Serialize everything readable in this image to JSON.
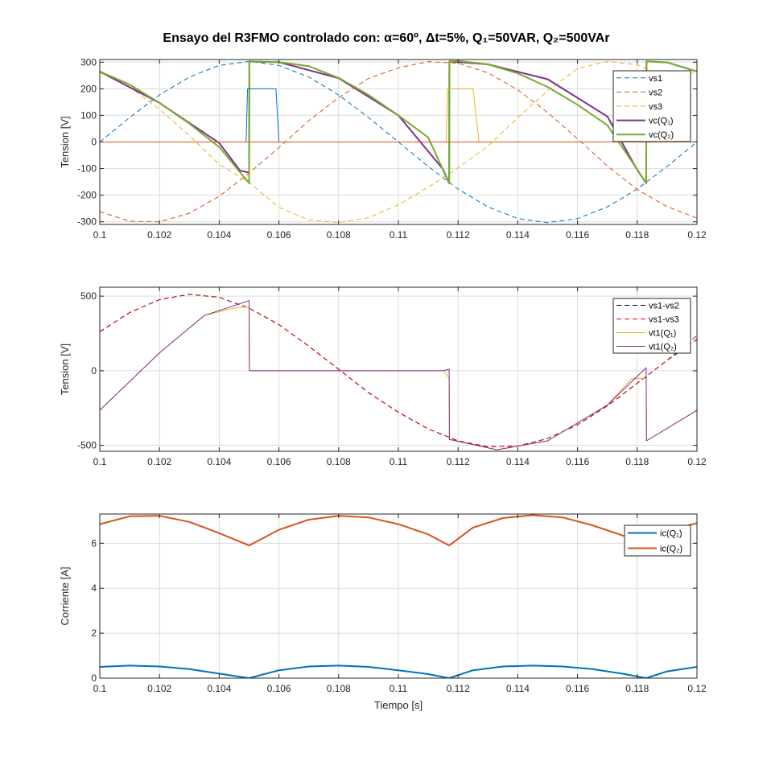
{
  "figure": {
    "title": "Ensayo del R3FMO controlado con: α=60º, Δt=5%, Q₁=50VAR, Q₂=500VAr"
  },
  "chart_data": [
    {
      "type": "line",
      "ylabel": "Tension [V]",
      "xlabel": "",
      "xlim": [
        0.1,
        0.12
      ],
      "ylim": [
        -310,
        310
      ],
      "xticks": [
        0.1,
        0.102,
        0.104,
        0.106,
        0.108,
        0.11,
        0.112,
        0.114,
        0.116,
        0.118,
        0.12
      ],
      "xtick_labels": [
        "0.1",
        "0.102",
        "0.104",
        "0.106",
        "0.108",
        "0.11",
        "0.112",
        "0.114",
        "0.116",
        "0.118",
        "0.12"
      ],
      "yticks": [
        -300,
        -200,
        -100,
        0,
        100,
        200,
        300
      ],
      "ytick_labels": [
        "-300",
        "-200",
        "-100",
        "0",
        "100",
        "200",
        "300"
      ],
      "grid": true,
      "legend_position": "top-right",
      "series": [
        {
          "name": "vs1",
          "color": "#0072BD",
          "style": "dashed",
          "width": 1,
          "x": [
            0.1,
            0.101,
            0.102,
            0.103,
            0.104,
            0.105,
            0.106,
            0.107,
            0.108,
            0.109,
            0.11,
            0.111,
            0.112,
            0.113,
            0.114,
            0.115,
            0.116,
            0.117,
            0.118,
            0.119,
            0.12
          ],
          "y": [
            0,
            92,
            177,
            244,
            288,
            303,
            288,
            244,
            177,
            92,
            0,
            -92,
            -177,
            -244,
            -288,
            -303,
            -288,
            -244,
            -177,
            -92,
            0
          ]
        },
        {
          "name": "vs2",
          "color": "#D95319",
          "style": "dashed",
          "width": 1,
          "x": [
            0.1,
            0.101,
            0.102,
            0.103,
            0.104,
            0.105,
            0.106,
            0.107,
            0.108,
            0.109,
            0.11,
            0.111,
            0.112,
            0.113,
            0.114,
            0.115,
            0.116,
            0.117,
            0.118,
            0.119,
            0.12
          ],
          "y": [
            -262,
            -298,
            -300,
            -268,
            -204,
            -117,
            -21,
            80,
            167,
            239,
            279,
            302,
            296,
            260,
            196,
            111,
            12,
            -90,
            -179,
            -243,
            -286
          ]
        },
        {
          "name": "vs3",
          "color": "#EDB120",
          "style": "dashed",
          "width": 1,
          "x": [
            0.1,
            0.101,
            0.102,
            0.103,
            0.104,
            0.105,
            0.106,
            0.107,
            0.108,
            0.109,
            0.11,
            0.111,
            0.112,
            0.113,
            0.114,
            0.115,
            0.116,
            0.117,
            0.118,
            0.119,
            0.12
          ],
          "y": [
            262,
            206,
            123,
            24,
            -84,
            -152,
            -246,
            -293,
            -303,
            -285,
            -236,
            -170,
            -97,
            -16,
            92,
            192,
            276,
            303,
            290,
            240,
            262
          ]
        },
        {
          "name": "vc(Q₁)",
          "color": "#7E2F8E",
          "style": "solid",
          "width": 2,
          "x": [
            0.1,
            0.102,
            0.104,
            0.1047,
            0.105,
            0.10501,
            0.1055,
            0.106,
            0.108,
            0.11,
            0.1115,
            0.1117,
            0.11171,
            0.113,
            0.115,
            0.117,
            0.118,
            0.1183,
            0.11831,
            0.119,
            0.12
          ],
          "y": [
            265,
            147,
            -4,
            -108,
            -115,
            303,
            301,
            300,
            240,
            100,
            -103,
            -155,
            303,
            292,
            236,
            96,
            -105,
            -155,
            303,
            299,
            265
          ]
        },
        {
          "name": "vc(Q₂)",
          "color": "#77AC30",
          "style": "solid",
          "width": 2,
          "x": [
            0.1,
            0.101,
            0.102,
            0.103,
            0.104,
            0.105,
            0.10501,
            0.106,
            0.107,
            0.108,
            0.109,
            0.11,
            0.111,
            0.1117,
            0.11171,
            0.112,
            0.113,
            0.114,
            0.115,
            0.116,
            0.117,
            0.118,
            0.1183,
            0.11831,
            0.119,
            0.12
          ],
          "y": [
            265,
            216,
            147,
            69,
            -19,
            -155,
            303,
            300,
            285,
            241,
            177,
            100,
            17,
            -155,
            303,
            305,
            292,
            258,
            207,
            140,
            63,
            -103,
            -155,
            303,
            299,
            265
          ]
        },
        {
          "name": "",
          "color": "#0072BD",
          "style": "solid",
          "width": 1,
          "x": [
            0.1,
            0.1049,
            0.10495,
            0.1059,
            0.106,
            0.12
          ],
          "y": [
            0,
            0,
            200,
            200,
            0,
            0
          ]
        },
        {
          "name": "",
          "color": "#EDB120",
          "style": "solid",
          "width": 1,
          "x": [
            0.1116,
            0.11165,
            0.1125,
            0.1127
          ],
          "y": [
            0,
            200,
            200,
            0
          ]
        },
        {
          "name": "",
          "color": "#D95319",
          "style": "solid",
          "width": 1,
          "x": [
            0.1,
            0.12
          ],
          "y": [
            0,
            0
          ]
        }
      ]
    },
    {
      "type": "line",
      "ylabel": "Tension [V]",
      "xlabel": "",
      "xlim": [
        0.1,
        0.12
      ],
      "ylim": [
        -540,
        560
      ],
      "xticks": [
        0.1,
        0.102,
        0.104,
        0.106,
        0.108,
        0.11,
        0.112,
        0.114,
        0.116,
        0.118,
        0.12
      ],
      "xtick_labels": [
        "0.1",
        "0.102",
        "0.104",
        "0.106",
        "0.108",
        "0.11",
        "0.112",
        "0.114",
        "0.116",
        "0.118",
        "0.12"
      ],
      "yticks": [
        -500,
        0,
        500
      ],
      "ytick_labels": [
        "-500",
        "0",
        "500"
      ],
      "grid": true,
      "legend_position": "top-right",
      "series": [
        {
          "name": "vs1-vs2",
          "color": "#000000",
          "style": "dashed",
          "width": 1,
          "x": [
            0.1,
            0.101,
            0.102,
            0.103,
            0.104,
            0.105,
            0.106,
            0.107,
            0.108,
            0.109,
            0.11,
            0.111,
            0.112,
            0.113,
            0.114,
            0.115,
            0.116,
            0.117,
            0.118,
            0.119,
            0.12
          ],
          "y": [
            262,
            390,
            477,
            512,
            492,
            420,
            309,
            164,
            10,
            -147,
            -279,
            -390,
            -470,
            -510,
            -505,
            -454,
            -362,
            -236,
            -84,
            70,
            210
          ]
        },
        {
          "name": "vs1-vs3",
          "color": "#E00000",
          "style": "dashed",
          "width": 1,
          "x": [
            0.1,
            0.101,
            0.102,
            0.103,
            0.104,
            0.105,
            0.106,
            0.107,
            0.108,
            0.109,
            0.11,
            0.111,
            0.112,
            0.113,
            0.114,
            0.115,
            0.116,
            0.117,
            0.118,
            0.119,
            0.12
          ],
          "y": [
            262,
            390,
            477,
            512,
            492,
            420,
            309,
            164,
            10,
            -147,
            -279,
            -390,
            -470,
            -510,
            -505,
            -454,
            -362,
            -236,
            -84,
            70,
            235
          ]
        },
        {
          "name": "vt1(Q₁)",
          "color": "#EDB120",
          "style": "solid",
          "width": 1,
          "x": [
            0.1,
            0.102,
            0.1035,
            0.1045,
            0.105,
            0.10501,
            0.1115,
            0.1117,
            0.11171,
            0.1133,
            0.115,
            0.117,
            0.1178,
            0.1183,
            0.11831,
            0.12
          ],
          "y": [
            -265,
            120,
            370,
            420,
            430,
            0,
            0,
            -50,
            -460,
            -530,
            -470,
            -230,
            -55,
            -50,
            -470,
            -265
          ]
        },
        {
          "name": "vt1(Q₂)",
          "color": "#7E2F8E",
          "style": "solid",
          "width": 1,
          "x": [
            0.1,
            0.102,
            0.1035,
            0.105,
            0.10501,
            0.1115,
            0.1117,
            0.11171,
            0.1133,
            0.115,
            0.117,
            0.1183,
            0.11831,
            0.12
          ],
          "y": [
            -265,
            120,
            370,
            470,
            0,
            0,
            10,
            -460,
            -530,
            -470,
            -230,
            20,
            -470,
            -265
          ]
        }
      ]
    },
    {
      "type": "line",
      "ylabel": "Corriente [A]",
      "xlabel": "Tiempo [s]",
      "xlim": [
        0.1,
        0.12
      ],
      "ylim": [
        0,
        7.3
      ],
      "xticks": [
        0.1,
        0.102,
        0.104,
        0.106,
        0.108,
        0.11,
        0.112,
        0.114,
        0.116,
        0.118,
        0.12
      ],
      "xtick_labels": [
        "0.1",
        "0.102",
        "0.104",
        "0.106",
        "0.108",
        "0.11",
        "0.112",
        "0.114",
        "0.116",
        "0.118",
        "0.12"
      ],
      "yticks": [
        0,
        2,
        4,
        6
      ],
      "ytick_labels": [
        "0",
        "2",
        "4",
        "6"
      ],
      "grid": true,
      "legend_position": "top-right",
      "series": [
        {
          "name": "ic(Q₁)",
          "color": "#0072BD",
          "style": "solid",
          "width": 2,
          "x": [
            0.1,
            0.101,
            0.102,
            0.103,
            0.104,
            0.105,
            0.106,
            0.107,
            0.108,
            0.109,
            0.11,
            0.111,
            0.1117,
            0.1125,
            0.1135,
            0.1145,
            0.1155,
            0.1165,
            0.1175,
            0.1183,
            0.119,
            0.12
          ],
          "y": [
            0.5,
            0.56,
            0.52,
            0.4,
            0.2,
            0,
            0.35,
            0.52,
            0.56,
            0.5,
            0.35,
            0.18,
            0,
            0.35,
            0.52,
            0.56,
            0.52,
            0.4,
            0.2,
            0,
            0.3,
            0.5
          ]
        },
        {
          "name": "ic(Q₂)",
          "color": "#D95319",
          "style": "solid",
          "width": 2,
          "x": [
            0.1,
            0.101,
            0.102,
            0.103,
            0.104,
            0.105,
            0.106,
            0.107,
            0.108,
            0.109,
            0.11,
            0.111,
            0.1117,
            0.1125,
            0.1135,
            0.1145,
            0.1155,
            0.1165,
            0.1175,
            0.1183,
            0.119,
            0.12
          ],
          "y": [
            6.85,
            7.2,
            7.22,
            6.95,
            6.45,
            5.9,
            6.6,
            7.05,
            7.22,
            7.15,
            6.85,
            6.4,
            5.9,
            6.7,
            7.12,
            7.25,
            7.15,
            6.8,
            6.35,
            5.9,
            6.55,
            6.9
          ]
        }
      ]
    }
  ]
}
